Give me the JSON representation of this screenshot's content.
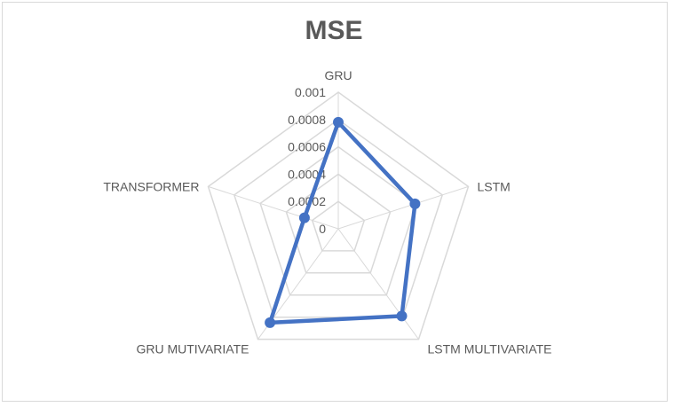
{
  "chart_data": {
    "type": "radar",
    "title": "MSE",
    "categories": [
      "GRU",
      "LSTM",
      "LSTM MULTIVARIATE",
      "GRU MUTIVARIATE",
      "TRANSFORMER"
    ],
    "series": [
      {
        "values": [
          0.00078,
          0.00059,
          0.00079,
          0.00085,
          0.00026
        ],
        "color": "#4472c4"
      }
    ],
    "rlim": [
      0,
      0.001
    ],
    "ticks": [
      "0",
      "0.0002",
      "0.0004",
      "0.0006",
      "0.0008",
      "0.001"
    ],
    "tick_values": [
      0,
      0.0002,
      0.0004,
      0.0006,
      0.0008,
      0.001
    ],
    "grid": true,
    "gridline_color": "#d9d9d9",
    "legend": "none"
  }
}
